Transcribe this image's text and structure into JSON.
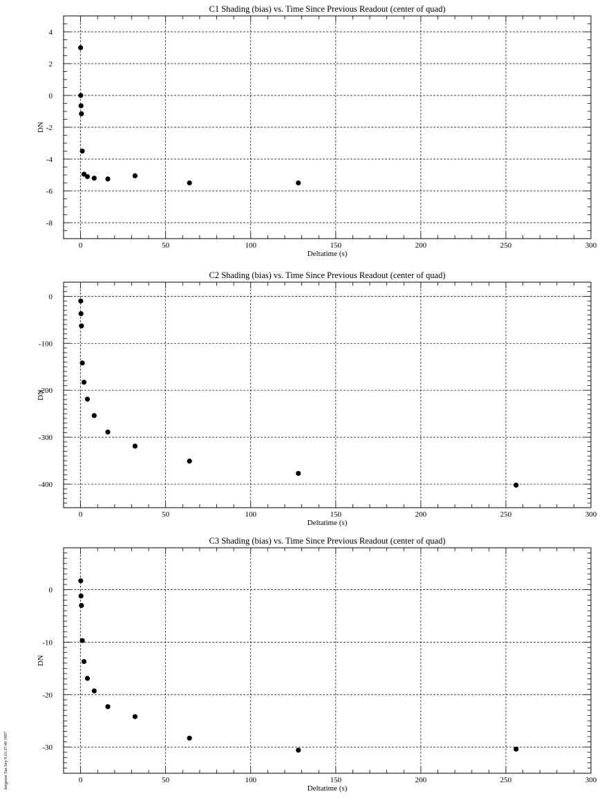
{
  "footer": "bergeron Tue Sep  9 21:37:49 1997",
  "chart_data": [
    {
      "type": "scatter",
      "title": "C1 Shading (bias) vs. Time Since Previous Readout (center of quad)",
      "xlabel": "Deltatime (s)",
      "ylabel": "DN",
      "xlim": [
        -10,
        300
      ],
      "ylim": [
        -9,
        5
      ],
      "xticks": [
        0,
        50,
        100,
        150,
        200,
        250,
        300
      ],
      "yticks": [
        -8,
        -6,
        -4,
        -2,
        0,
        2,
        4
      ],
      "xminor": 10,
      "yminor": 0.5,
      "grid": true,
      "points": [
        {
          "x": 0.0,
          "y": 3.0
        },
        {
          "x": 0.1,
          "y": 0.0
        },
        {
          "x": 0.25,
          "y": -0.65
        },
        {
          "x": 0.5,
          "y": -1.15
        },
        {
          "x": 1,
          "y": -3.5
        },
        {
          "x": 2,
          "y": -4.95
        },
        {
          "x": 4,
          "y": -5.1
        },
        {
          "x": 8,
          "y": -5.2
        },
        {
          "x": 16,
          "y": -5.25
        },
        {
          "x": 32,
          "y": -5.05
        },
        {
          "x": 64,
          "y": -5.5
        },
        {
          "x": 128,
          "y": -5.5
        }
      ]
    },
    {
      "type": "scatter",
      "title": "C2 Shading (bias) vs. Time Since Previous Readout (center of quad)",
      "xlabel": "Deltatime (s)",
      "ylabel": "DN",
      "xlim": [
        -10,
        300
      ],
      "ylim": [
        -450,
        30
      ],
      "xticks": [
        0,
        50,
        100,
        150,
        200,
        250,
        300
      ],
      "yticks": [
        -400,
        -300,
        -200,
        -100,
        0
      ],
      "xminor": 10,
      "yminor": 10,
      "grid": true,
      "points": [
        {
          "x": 0.1,
          "y": -10
        },
        {
          "x": 0.25,
          "y": -37
        },
        {
          "x": 0.5,
          "y": -63
        },
        {
          "x": 1,
          "y": -142
        },
        {
          "x": 2,
          "y": -183
        },
        {
          "x": 4,
          "y": -219
        },
        {
          "x": 8,
          "y": -254
        },
        {
          "x": 16,
          "y": -289
        },
        {
          "x": 32,
          "y": -319
        },
        {
          "x": 64,
          "y": -351
        },
        {
          "x": 128,
          "y": -377
        },
        {
          "x": 256,
          "y": -402
        }
      ]
    },
    {
      "type": "scatter",
      "title": "C3 Shading (bias) vs. Time Since Previous Readout (center of quad)",
      "xlabel": "Deltatime (s)",
      "ylabel": "DN",
      "xlim": [
        -10,
        300
      ],
      "ylim": [
        -35,
        8
      ],
      "xticks": [
        0,
        50,
        100,
        150,
        200,
        250,
        300
      ],
      "yticks": [
        -30,
        -20,
        -10,
        0
      ],
      "xminor": 10,
      "yminor": 1,
      "grid": true,
      "points": [
        {
          "x": 0.1,
          "y": 1.7
        },
        {
          "x": 0.25,
          "y": -1.2
        },
        {
          "x": 0.5,
          "y": -3.0
        },
        {
          "x": 1,
          "y": -9.7
        },
        {
          "x": 2,
          "y": -13.7
        },
        {
          "x": 4,
          "y": -16.9
        },
        {
          "x": 8,
          "y": -19.3
        },
        {
          "x": 16,
          "y": -22.3
        },
        {
          "x": 32,
          "y": -24.2
        },
        {
          "x": 64,
          "y": -28.3
        },
        {
          "x": 128,
          "y": -30.6
        },
        {
          "x": 256,
          "y": -30.4
        }
      ]
    }
  ]
}
